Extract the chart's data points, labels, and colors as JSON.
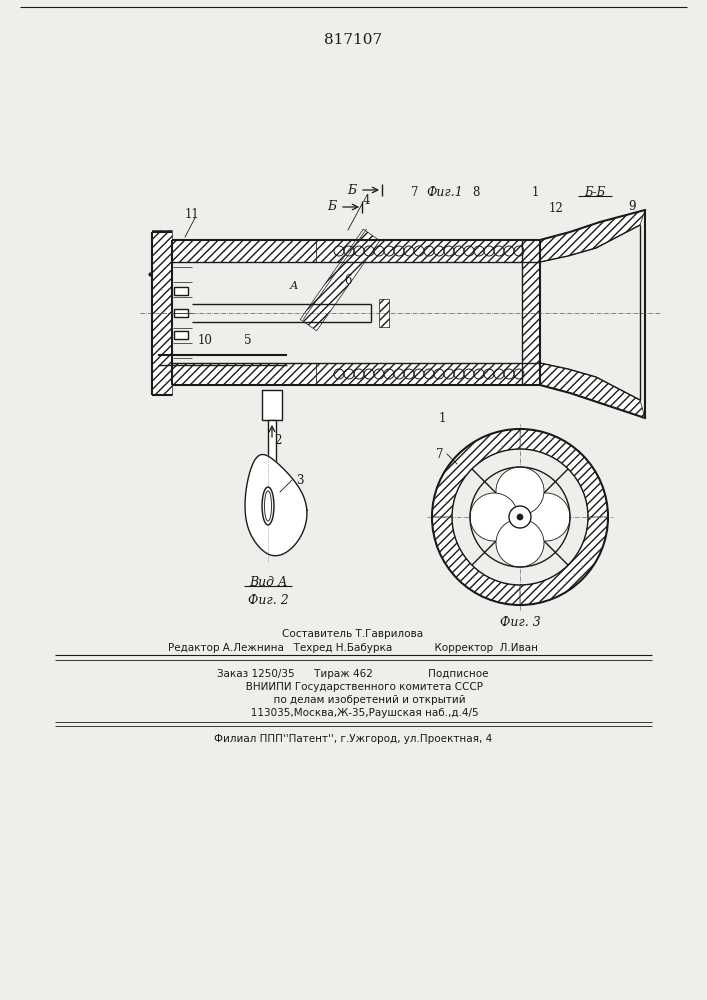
{
  "patent_number": "817107",
  "bg": "#f0eeea",
  "lc": "#1a1a1a",
  "bottom_lines": [
    "Составитель Т.Гаврилова",
    "Редактор А.Лежнина   Техред Н.Бабурка             Корректор  Л.Иван",
    "Заказ 1250/35      Тираж 462                 Подписное",
    "       ВНИИПИ Государственного комитета СССР",
    "          по делам изобретений и открытий",
    "       113035,Москва,Ж-35,Раушская наб.,д.4/5",
    "Филиал ППП''Патент'', г.Ужгород, ул.Проектная, 4"
  ]
}
